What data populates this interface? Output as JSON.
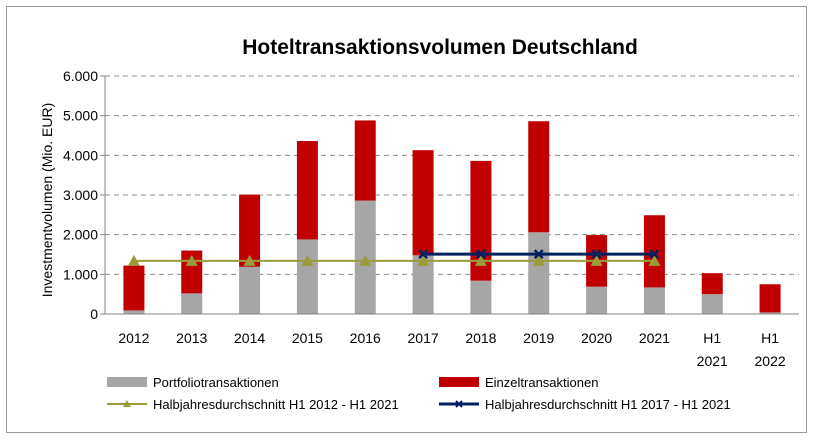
{
  "chart_data": {
    "type": "bar",
    "title": "Hoteltransaktionsvolumen Deutschland",
    "ylabel": "Investmentvolumen (Mio. EUR)",
    "xlabel": "",
    "ylim": [
      0,
      6000
    ],
    "yticks": [
      0,
      1000,
      2000,
      3000,
      4000,
      5000,
      6000
    ],
    "ytick_labels": [
      "0",
      "1.000",
      "2.000",
      "3.000",
      "4.000",
      "5.000",
      "6.000"
    ],
    "grid": true,
    "legend_position": "bottom",
    "categories": [
      [
        "2012"
      ],
      [
        "2013"
      ],
      [
        "2014"
      ],
      [
        "2015"
      ],
      [
        "2016"
      ],
      [
        "2017"
      ],
      [
        "2018"
      ],
      [
        "2019"
      ],
      [
        "2020"
      ],
      [
        "2021"
      ],
      [
        "H1",
        "2021"
      ],
      [
        "H1",
        "2022"
      ]
    ],
    "series": [
      {
        "name": "Portfoliotransaktionen",
        "kind": "bar",
        "color": "#a6a6a6",
        "values": [
          90,
          520,
          1190,
          1880,
          2860,
          1480,
          840,
          2060,
          690,
          670,
          500,
          40
        ]
      },
      {
        "name": "Einzeltransaktionen",
        "kind": "bar",
        "color": "#c00000",
        "values": [
          1130,
          1080,
          1820,
          2480,
          2020,
          2650,
          3020,
          2800,
          1300,
          1820,
          530,
          710
        ]
      },
      {
        "name": "Halbjahresdurchschnitt H1 2012 - H1 2021",
        "kind": "line",
        "color": "#9b9b3a",
        "marker": "triangle",
        "category_range": [
          0,
          9
        ],
        "value": 1340
      },
      {
        "name": "Halbjahresdurchschnitt H1 2017 - H1 2021",
        "kind": "line",
        "color": "#002060",
        "marker": "x",
        "category_range": [
          5,
          9
        ],
        "value": 1510
      }
    ]
  }
}
